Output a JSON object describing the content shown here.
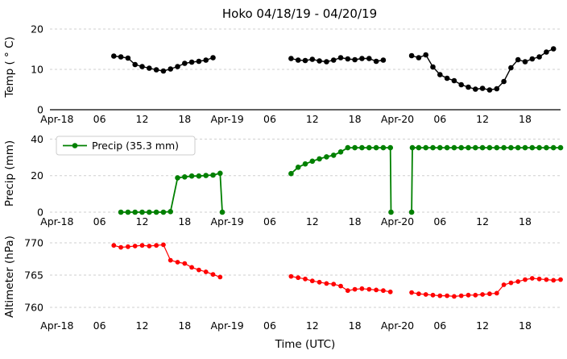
{
  "figure": {
    "title": "Hoko 04/18/19 - 04/20/19",
    "xlabel": "Time (UTC)"
  },
  "chart_data": {
    "type": "line",
    "title": "Hoko 04/18/19 - 04/20/19",
    "xlabel": "Time (UTC)",
    "x_unit": "hours since 2019-04-18 00:00 UTC",
    "xlim": [
      -1,
      71
    ],
    "grid": "dashed-horizontal",
    "x_ticks": [
      {
        "hour": 0,
        "label": "Apr-18"
      },
      {
        "hour": 6,
        "label": "06"
      },
      {
        "hour": 12,
        "label": "12"
      },
      {
        "hour": 18,
        "label": "18"
      },
      {
        "hour": 24,
        "label": "Apr-19"
      },
      {
        "hour": 30,
        "label": "06"
      },
      {
        "hour": 36,
        "label": "12"
      },
      {
        "hour": 42,
        "label": "18"
      },
      {
        "hour": 48,
        "label": "Apr-20"
      },
      {
        "hour": 54,
        "label": "06"
      },
      {
        "hour": 60,
        "label": "12"
      },
      {
        "hour": 66,
        "label": "18"
      }
    ],
    "panels": [
      {
        "id": "temp",
        "ylabel": "Temp ( ° C)",
        "color": "#000000",
        "yticks": [
          0,
          10,
          20
        ],
        "ylim": [
          0,
          21.2
        ],
        "bottom_spine": true,
        "segments": [
          [
            [
              8,
              13.3
            ],
            [
              9,
              13.1
            ],
            [
              10,
              12.8
            ],
            [
              11,
              11.2
            ],
            [
              12,
              10.7
            ],
            [
              13,
              10.3
            ],
            [
              14,
              9.9
            ],
            [
              15,
              9.6
            ],
            [
              16,
              10.1
            ],
            [
              17,
              10.7
            ],
            [
              18,
              11.5
            ],
            [
              19,
              11.8
            ],
            [
              20,
              12.0
            ],
            [
              21,
              12.3
            ],
            [
              22,
              12.9
            ]
          ],
          [
            [
              33,
              12.7
            ],
            [
              34,
              12.3
            ],
            [
              35,
              12.2
            ],
            [
              36,
              12.5
            ],
            [
              37,
              12.1
            ],
            [
              38,
              11.9
            ],
            [
              39,
              12.3
            ],
            [
              40,
              12.9
            ],
            [
              41,
              12.6
            ],
            [
              42,
              12.4
            ],
            [
              43,
              12.7
            ],
            [
              44,
              12.7
            ],
            [
              45,
              12.0
            ],
            [
              46,
              12.3
            ]
          ],
          [
            [
              50,
              13.4
            ],
            [
              51,
              12.9
            ],
            [
              52,
              13.6
            ],
            [
              53,
              10.6
            ],
            [
              54,
              8.7
            ],
            [
              55,
              7.8
            ],
            [
              56,
              7.2
            ],
            [
              57,
              6.2
            ],
            [
              58,
              5.6
            ],
            [
              59,
              5.1
            ],
            [
              60,
              5.3
            ],
            [
              61,
              4.9
            ],
            [
              62,
              5.2
            ],
            [
              63,
              7.0
            ],
            [
              64,
              10.4
            ],
            [
              65,
              12.4
            ],
            [
              66,
              11.9
            ],
            [
              67,
              12.6
            ],
            [
              68,
              13.1
            ],
            [
              69,
              14.3
            ],
            [
              70,
              15.1
            ]
          ]
        ]
      },
      {
        "id": "precip",
        "ylabel": "Precip (mm)",
        "color": "#008000",
        "legend": "Precip (35.3 mm)",
        "total_mm": 35.3,
        "yticks": [
          0,
          20,
          40
        ],
        "ylim": [
          0,
          42.4
        ],
        "bottom_spine": false,
        "segments": [
          [
            [
              9,
              0
            ],
            [
              10,
              0
            ],
            [
              11,
              0
            ],
            [
              12,
              0
            ],
            [
              13,
              0
            ],
            [
              14,
              0
            ],
            [
              15,
              0
            ],
            [
              16,
              0.3
            ],
            [
              17,
              18.8
            ],
            [
              18,
              19.3
            ],
            [
              19,
              19.8
            ],
            [
              20,
              19.8
            ],
            [
              21,
              20.1
            ],
            [
              22,
              20.3
            ],
            [
              23,
              21.3
            ],
            [
              23.3,
              0
            ]
          ],
          [
            [
              33,
              21.1
            ],
            [
              34,
              24.6
            ],
            [
              35,
              26.4
            ],
            [
              36,
              27.9
            ],
            [
              37,
              29.2
            ],
            [
              38,
              30.3
            ],
            [
              39,
              31.2
            ],
            [
              40,
              33.0
            ],
            [
              41,
              35.3
            ],
            [
              42,
              35.3
            ],
            [
              43,
              35.3
            ],
            [
              44,
              35.3
            ],
            [
              45,
              35.3
            ],
            [
              46,
              35.3
            ],
            [
              47,
              35.3
            ],
            [
              47.1,
              0
            ]
          ],
          [
            [
              50,
              0
            ],
            [
              50.1,
              35.3
            ],
            [
              51,
              35.3
            ],
            [
              52,
              35.3
            ],
            [
              53,
              35.3
            ],
            [
              54,
              35.3
            ],
            [
              55,
              35.3
            ],
            [
              56,
              35.3
            ],
            [
              57,
              35.3
            ],
            [
              58,
              35.3
            ],
            [
              59,
              35.3
            ],
            [
              60,
              35.3
            ],
            [
              61,
              35.3
            ],
            [
              62,
              35.3
            ],
            [
              63,
              35.3
            ],
            [
              64,
              35.3
            ],
            [
              65,
              35.3
            ],
            [
              66,
              35.3
            ],
            [
              67,
              35.3
            ],
            [
              68,
              35.3
            ],
            [
              69,
              35.3
            ],
            [
              70,
              35.3
            ],
            [
              71,
              35.3
            ]
          ]
        ]
      },
      {
        "id": "altimeter",
        "ylabel": "Altimeter (hPa)",
        "color": "#ff0000",
        "yticks": [
          760,
          765,
          770
        ],
        "ylim": [
          758.625,
          770.875
        ],
        "bottom_spine": false,
        "segments": [
          [
            [
              8,
              769.6
            ],
            [
              9,
              769.3
            ],
            [
              10,
              769.4
            ],
            [
              11,
              769.5
            ],
            [
              12,
              769.6
            ],
            [
              13,
              769.5
            ],
            [
              14,
              769.6
            ],
            [
              15,
              769.7
            ],
            [
              16,
              767.3
            ],
            [
              17,
              767.0
            ],
            [
              18,
              766.8
            ],
            [
              19,
              766.2
            ],
            [
              20,
              765.8
            ],
            [
              21,
              765.5
            ],
            [
              22,
              765.1
            ],
            [
              23,
              764.7
            ]
          ],
          [
            [
              33,
              764.8
            ],
            [
              34,
              764.6
            ],
            [
              35,
              764.4
            ],
            [
              36,
              764.1
            ],
            [
              37,
              763.9
            ],
            [
              38,
              763.7
            ],
            [
              39,
              763.6
            ],
            [
              40,
              763.3
            ],
            [
              41,
              762.6
            ],
            [
              42,
              762.8
            ],
            [
              43,
              762.9
            ],
            [
              44,
              762.8
            ],
            [
              45,
              762.7
            ],
            [
              46,
              762.6
            ],
            [
              47,
              762.4
            ]
          ],
          [
            [
              50,
              762.3
            ],
            [
              51,
              762.1
            ],
            [
              52,
              762.0
            ],
            [
              53,
              761.9
            ],
            [
              54,
              761.8
            ],
            [
              55,
              761.8
            ],
            [
              56,
              761.7
            ],
            [
              57,
              761.8
            ],
            [
              58,
              761.9
            ],
            [
              59,
              761.9
            ],
            [
              60,
              762.0
            ],
            [
              61,
              762.1
            ],
            [
              62,
              762.2
            ],
            [
              63,
              763.5
            ],
            [
              64,
              763.8
            ],
            [
              65,
              764.0
            ],
            [
              66,
              764.3
            ],
            [
              67,
              764.5
            ],
            [
              68,
              764.4
            ],
            [
              69,
              764.3
            ],
            [
              70,
              764.2
            ],
            [
              71,
              764.3
            ]
          ]
        ]
      }
    ]
  }
}
